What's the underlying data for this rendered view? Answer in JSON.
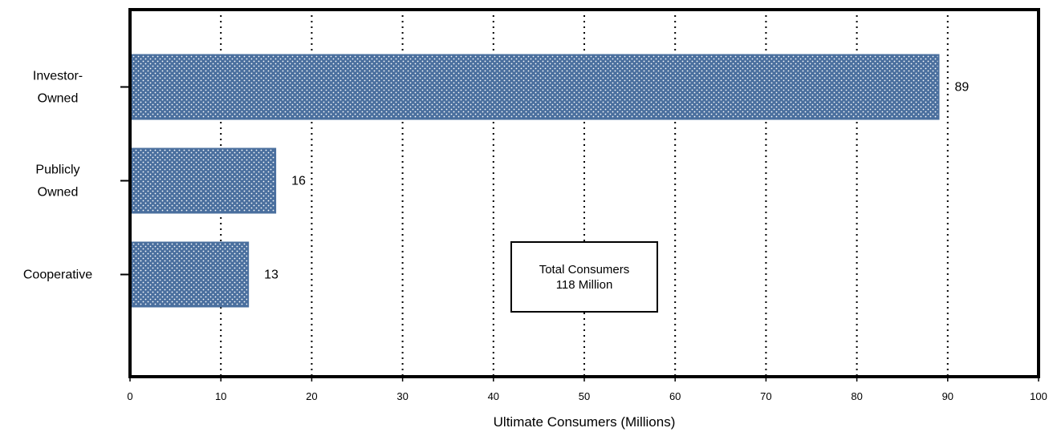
{
  "chart_data": {
    "type": "bar",
    "orientation": "horizontal",
    "categories": [
      "Investor-\nOwned",
      "Publicly\nOwned",
      "Cooperative"
    ],
    "values": [
      89,
      16,
      13
    ],
    "data_labels": [
      "89",
      "16",
      "13"
    ],
    "title": "",
    "xlabel": "Ultimate Consumers (Millions)",
    "ylabel": "",
    "xlim": [
      0,
      100
    ],
    "xticks": [
      0,
      10,
      20,
      30,
      40,
      50,
      60,
      70,
      80,
      90,
      100
    ],
    "grid": "vertical-dotted",
    "legend": "none",
    "bar_color": "#4a6f9e",
    "bar_pattern": "dotted-crosshatch",
    "annotation": {
      "lines": [
        "Total Consumers",
        "118 Million"
      ],
      "placement": "center"
    }
  }
}
